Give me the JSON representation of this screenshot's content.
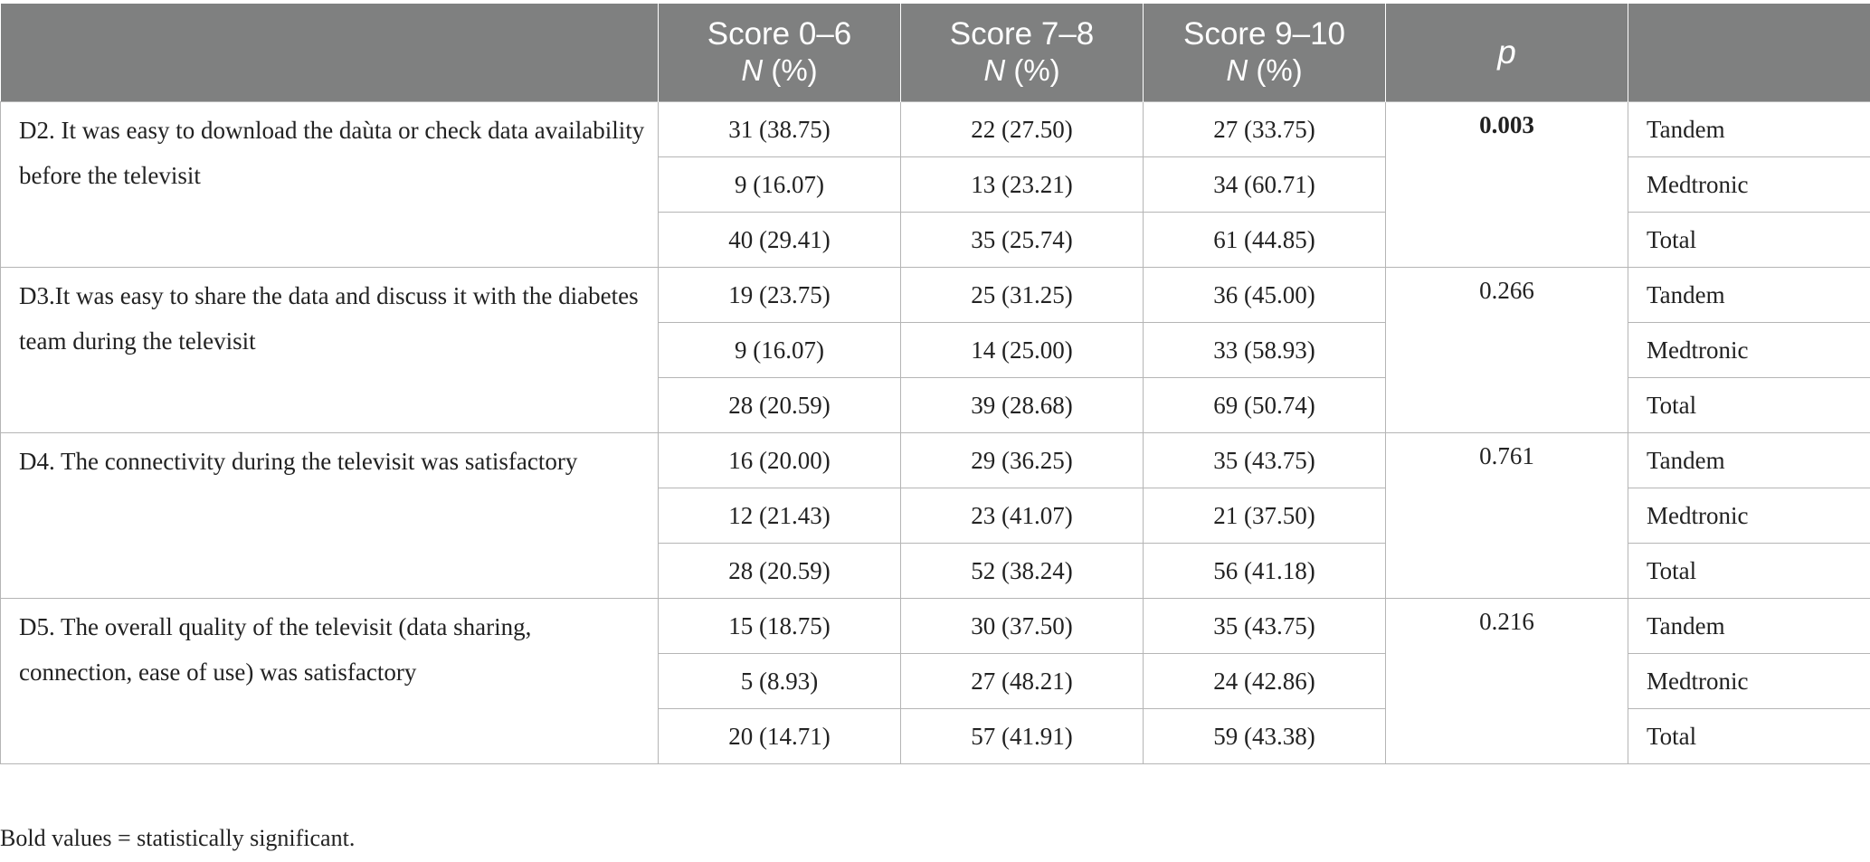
{
  "table": {
    "headers": [
      {
        "line1": "",
        "line2_n": "",
        "line2_rest": ""
      },
      {
        "line1": "Score 0–6",
        "line2_n": "N",
        "line2_rest": " (%)"
      },
      {
        "line1": "Score 7–8",
        "line2_n": "N",
        "line2_rest": " (%)"
      },
      {
        "line1": "Score 9–10",
        "line2_n": "N",
        "line2_rest": " (%)"
      },
      {
        "line1": "p",
        "line2_n": "",
        "line2_rest": ""
      },
      {
        "line1": "",
        "line2_n": "",
        "line2_rest": ""
      }
    ],
    "rows": [
      {
        "question": "D2. It was easy to download the daùta or check data availability before the televisit",
        "p": "0.003",
        "p_bold": true,
        "groups": [
          {
            "score_0_6": "31 (38.75)",
            "score_7_8": "22 (27.50)",
            "score_9_10": "27 (33.75)",
            "group": "Tandem"
          },
          {
            "score_0_6": "9 (16.07)",
            "score_7_8": "13 (23.21)",
            "score_9_10": "34 (60.71)",
            "group": "Medtronic"
          },
          {
            "score_0_6": "40 (29.41)",
            "score_7_8": "35 (25.74)",
            "score_9_10": "61 (44.85)",
            "group": "Total"
          }
        ]
      },
      {
        "question": "D3.It was easy to share the data and discuss it with the diabetes team during the televisit",
        "p": "0.266",
        "p_bold": false,
        "groups": [
          {
            "score_0_6": "19 (23.75)",
            "score_7_8": "25 (31.25)",
            "score_9_10": "36 (45.00)",
            "group": "Tandem"
          },
          {
            "score_0_6": "9 (16.07)",
            "score_7_8": "14 (25.00)",
            "score_9_10": "33 (58.93)",
            "group": "Medtronic"
          },
          {
            "score_0_6": "28 (20.59)",
            "score_7_8": "39 (28.68)",
            "score_9_10": "69 (50.74)",
            "group": "Total"
          }
        ]
      },
      {
        "question": "D4. The connectivity during the televisit was satisfactory",
        "p": "0.761",
        "p_bold": false,
        "groups": [
          {
            "score_0_6": "16 (20.00)",
            "score_7_8": "29 (36.25)",
            "score_9_10": "35 (43.75)",
            "group": "Tandem"
          },
          {
            "score_0_6": "12 (21.43)",
            "score_7_8": "23 (41.07)",
            "score_9_10": "21 (37.50)",
            "group": "Medtronic"
          },
          {
            "score_0_6": "28 (20.59)",
            "score_7_8": "52 (38.24)",
            "score_9_10": "56 (41.18)",
            "group": "Total"
          }
        ]
      },
      {
        "question": "D5. The overall quality of the televisit (data sharing, connection, ease of use) was satisfactory",
        "p": "0.216",
        "p_bold": false,
        "groups": [
          {
            "score_0_6": "15 (18.75)",
            "score_7_8": "30 (37.50)",
            "score_9_10": "35 (43.75)",
            "group": "Tandem"
          },
          {
            "score_0_6": "5 (8.93)",
            "score_7_8": "27 (48.21)",
            "score_9_10": "24 (42.86)",
            "group": "Medtronic"
          },
          {
            "score_0_6": "20 (14.71)",
            "score_7_8": "57 (41.91)",
            "score_9_10": "59 (43.38)",
            "group": "Total"
          }
        ]
      }
    ]
  },
  "footnote": "Bold values = statistically significant.",
  "colors": {
    "header_bg": "#7f8080",
    "header_text": "#ffffff",
    "grid": "#b5b5b5",
    "text": "#222222"
  }
}
